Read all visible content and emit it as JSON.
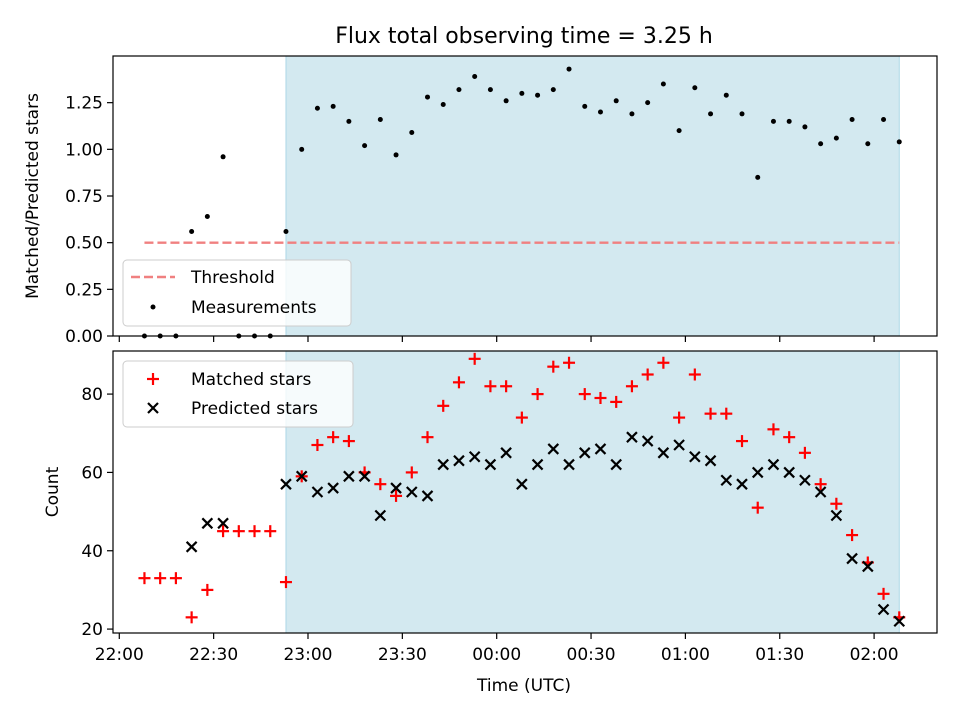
{
  "chart_data": {
    "title": "Flux total observing time = 3.25 h",
    "xlabel": "Time (UTC)",
    "x_tick_labels": [
      "22:00",
      "22:30",
      "23:00",
      "23:30",
      "00:00",
      "00:30",
      "01:00",
      "01:30",
      "02:00"
    ],
    "x_tick_minutes": [
      0,
      30,
      60,
      90,
      120,
      150,
      180,
      210,
      240
    ],
    "xlim_minutes": [
      -2,
      260
    ],
    "observing_window_minutes": [
      53,
      248
    ],
    "panels": [
      {
        "type": "scatter",
        "ylabel": "Matched/Predicted stars",
        "ylim": [
          0,
          1.5
        ],
        "y_ticks": [
          0,
          0.25,
          0.5,
          0.75,
          1.0,
          1.25
        ],
        "y_tick_labels": [
          "0.00",
          "0.25",
          "0.50",
          "0.75",
          "1.00",
          "1.25"
        ],
        "threshold": {
          "name": "Threshold",
          "y": 0.5,
          "x_range_minutes": [
            8,
            248
          ],
          "color": "#f08080"
        },
        "series": [
          {
            "name": "Measurements",
            "color": "#000000",
            "x_minutes": [
              8,
              13,
              18,
              23,
              28,
              33,
              38,
              43,
              48,
              53,
              58,
              63,
              68,
              73,
              78,
              83,
              88,
              93,
              98,
              103,
              108,
              113,
              118,
              123,
              128,
              133,
              138,
              143,
              148,
              153,
              158,
              163,
              168,
              173,
              178,
              183,
              188,
              193,
              198,
              203,
              208,
              213,
              218,
              223,
              228,
              233,
              238,
              243,
              248
            ],
            "values": [
              0,
              0,
              0,
              0.56,
              0.64,
              0.96,
              0,
              0,
              0,
              0.56,
              1.0,
              1.22,
              1.23,
              1.15,
              1.02,
              1.16,
              0.97,
              1.09,
              1.28,
              1.24,
              1.32,
              1.39,
              1.32,
              1.26,
              1.3,
              1.29,
              1.32,
              1.43,
              1.23,
              1.2,
              1.26,
              1.19,
              1.25,
              1.35,
              1.1,
              1.33,
              1.19,
              1.29,
              1.19,
              0.85,
              1.15,
              1.15,
              1.12,
              1.03,
              1.06,
              1.16,
              1.03,
              1.16,
              1.04
            ]
          }
        ],
        "legend": {
          "placement": "lower-left",
          "entries": [
            "Threshold",
            "Measurements"
          ]
        }
      },
      {
        "type": "scatter",
        "ylabel": "Count",
        "ylim": [
          19,
          91
        ],
        "y_ticks": [
          20,
          40,
          60,
          80
        ],
        "y_tick_labels": [
          "20",
          "40",
          "60",
          "80"
        ],
        "series": [
          {
            "name": "Matched stars",
            "marker": "+",
            "color": "#ff0000",
            "x_minutes": [
              8,
              13,
              18,
              23,
              28,
              33,
              38,
              43,
              48,
              53,
              58,
              63,
              68,
              73,
              78,
              83,
              88,
              93,
              98,
              103,
              108,
              113,
              118,
              123,
              128,
              133,
              138,
              143,
              148,
              153,
              158,
              163,
              168,
              173,
              178,
              183,
              188,
              193,
              198,
              203,
              208,
              213,
              218,
              223,
              228,
              233,
              238,
              243,
              248
            ],
            "values": [
              33,
              33,
              33,
              23,
              30,
              45,
              45,
              45,
              45,
              32,
              59,
              67,
              69,
              68,
              60,
              57,
              54,
              60,
              69,
              77,
              83,
              89,
              82,
              82,
              74,
              80,
              87,
              88,
              80,
              79,
              78,
              82,
              85,
              88,
              74,
              85,
              75,
              75,
              68,
              51,
              71,
              69,
              65,
              57,
              52,
              44,
              37,
              29,
              23
            ]
          },
          {
            "name": "Predicted stars",
            "marker": "x",
            "color": "#000000",
            "x_minutes": [
              23,
              28,
              33,
              53,
              58,
              63,
              68,
              73,
              78,
              83,
              88,
              93,
              98,
              103,
              108,
              113,
              118,
              123,
              128,
              133,
              138,
              143,
              148,
              153,
              158,
              163,
              168,
              173,
              178,
              183,
              188,
              193,
              198,
              203,
              208,
              213,
              218,
              223,
              228,
              233,
              238,
              243,
              248
            ],
            "values": [
              41,
              47,
              47,
              57,
              59,
              55,
              56,
              59,
              59,
              49,
              56,
              55,
              54,
              62,
              63,
              64,
              62,
              65,
              57,
              62,
              66,
              62,
              65,
              66,
              62,
              69,
              68,
              65,
              67,
              64,
              63,
              58,
              57,
              60,
              62,
              60,
              58,
              55,
              49,
              38,
              36,
              25,
              22
            ]
          }
        ],
        "legend": {
          "placement": "top-left",
          "entries": [
            "Matched stars",
            "Predicted stars"
          ]
        }
      }
    ],
    "colors": {
      "observing_window": "#d3e9f0",
      "window_edge": "#add8e6"
    }
  }
}
